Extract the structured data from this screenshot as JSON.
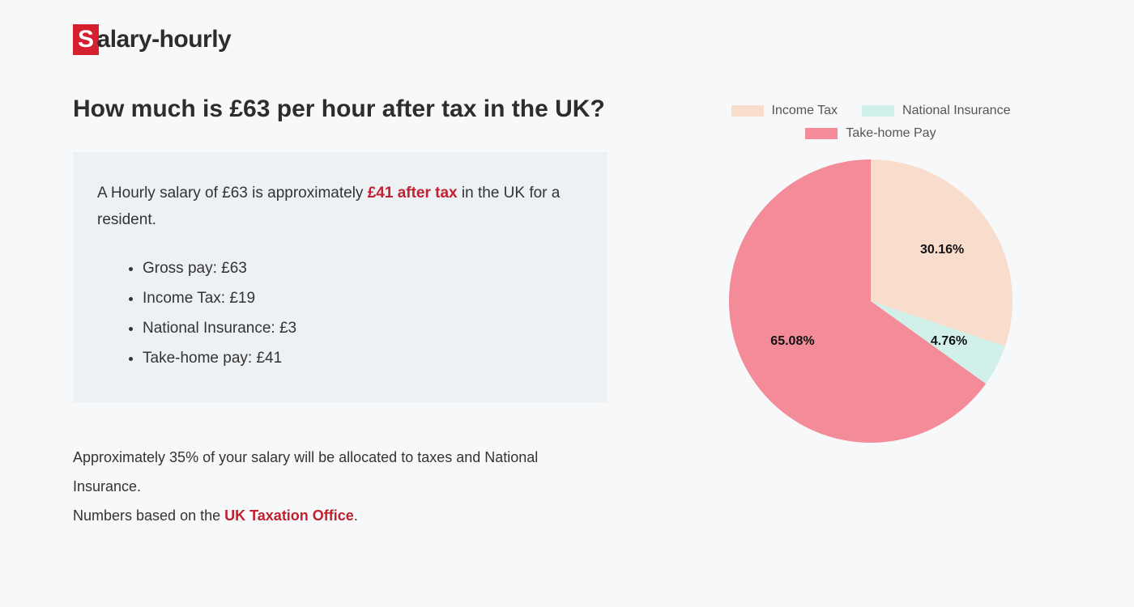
{
  "logo": {
    "first_char": "S",
    "rest": "alary-hourly"
  },
  "heading": "How much is £63 per hour after tax in the UK?",
  "summary": {
    "lead_pre": "A Hourly salary of £63 is approximately ",
    "lead_highlight": "£41 after tax",
    "lead_post": " in the UK for a resident.",
    "items": [
      "Gross pay: £63",
      "Income Tax: £19",
      "National Insurance: £3",
      "Take-home pay: £41"
    ]
  },
  "footnote": {
    "line1": "Approximately 35% of your salary will be allocated to taxes and National Insurance.",
    "line2_pre": "Numbers based on the ",
    "line2_link": "UK Taxation Office",
    "line2_post": "."
  },
  "pie": {
    "type": "pie",
    "background_color": "#f7f8fa",
    "legend_position": "top",
    "legend_fontsize": 16,
    "legend_text_color": "#555",
    "label_fontsize": 16,
    "label_fontweight": 700,
    "label_color": "#111",
    "radius": 175,
    "start_angle_deg": 0,
    "slices": [
      {
        "name": "Income Tax",
        "value": 30.16,
        "label": "30.16%",
        "color": "#f8dccc"
      },
      {
        "name": "National Insurance",
        "value": 4.76,
        "label": "4.76%",
        "color": "#d1f0ea"
      },
      {
        "name": "Take-home Pay",
        "value": 65.08,
        "label": "65.08%",
        "color": "#f48b99"
      }
    ]
  }
}
